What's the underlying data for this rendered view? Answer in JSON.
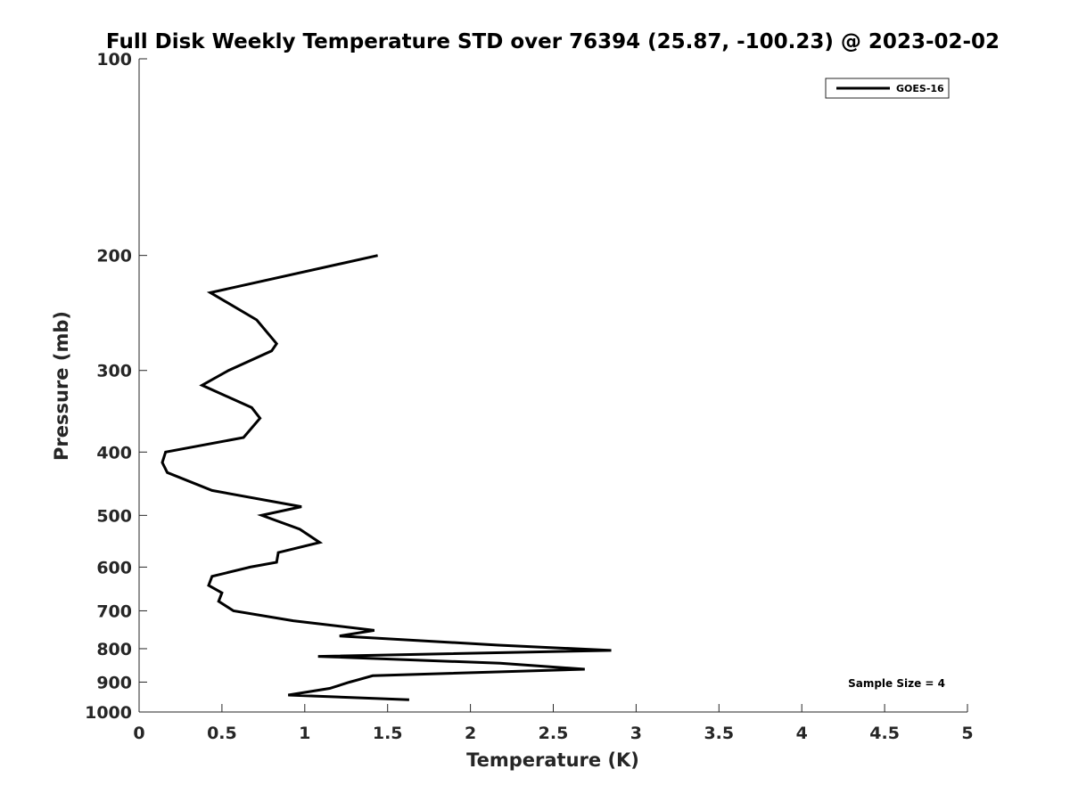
{
  "chart_data": {
    "type": "line",
    "title": "Full Disk Weekly Temperature STD over 76394 (25.87, -100.23) @ 2023-02-02",
    "xlabel": "Temperature (K)",
    "ylabel": "Pressure (mb)",
    "xlim": [
      0,
      5
    ],
    "ylim": [
      100,
      1000
    ],
    "y_scale": "log",
    "y_direction": "reversed",
    "grid": false,
    "legend_position": "top-right",
    "x_ticks": [
      0,
      0.5,
      1,
      1.5,
      2,
      2.5,
      3,
      3.5,
      4,
      4.5,
      5
    ],
    "x_tick_labels": [
      "0",
      "0.5",
      "1",
      "1.5",
      "2",
      "2.5",
      "3",
      "3.5",
      "4",
      "4.5",
      "5"
    ],
    "y_ticks": [
      100,
      200,
      300,
      400,
      500,
      600,
      700,
      800,
      900,
      1000
    ],
    "y_tick_labels": [
      "100",
      "200",
      "300",
      "400",
      "500",
      "600",
      "700",
      "800",
      "900",
      "1000"
    ],
    "series": [
      {
        "name": "GOES-16",
        "color": "#000000",
        "points": [
          {
            "x": 1.44,
            "y": 200
          },
          {
            "x": 0.43,
            "y": 228
          },
          {
            "x": 0.71,
            "y": 251
          },
          {
            "x": 0.83,
            "y": 273
          },
          {
            "x": 0.8,
            "y": 280
          },
          {
            "x": 0.54,
            "y": 300
          },
          {
            "x": 0.38,
            "y": 316
          },
          {
            "x": 0.68,
            "y": 342
          },
          {
            "x": 0.73,
            "y": 355
          },
          {
            "x": 0.63,
            "y": 380
          },
          {
            "x": 0.16,
            "y": 400
          },
          {
            "x": 0.14,
            "y": 415
          },
          {
            "x": 0.17,
            "y": 430
          },
          {
            "x": 0.44,
            "y": 458
          },
          {
            "x": 0.98,
            "y": 485
          },
          {
            "x": 0.74,
            "y": 500
          },
          {
            "x": 0.97,
            "y": 525
          },
          {
            "x": 1.09,
            "y": 550
          },
          {
            "x": 0.84,
            "y": 570
          },
          {
            "x": 0.83,
            "y": 590
          },
          {
            "x": 0.67,
            "y": 600
          },
          {
            "x": 0.44,
            "y": 620
          },
          {
            "x": 0.42,
            "y": 640
          },
          {
            "x": 0.5,
            "y": 657
          },
          {
            "x": 0.48,
            "y": 677
          },
          {
            "x": 0.57,
            "y": 700
          },
          {
            "x": 0.93,
            "y": 725
          },
          {
            "x": 1.42,
            "y": 750
          },
          {
            "x": 1.21,
            "y": 765
          },
          {
            "x": 2.17,
            "y": 790
          },
          {
            "x": 2.85,
            "y": 805
          },
          {
            "x": 1.08,
            "y": 822
          },
          {
            "x": 2.18,
            "y": 842
          },
          {
            "x": 2.69,
            "y": 860
          },
          {
            "x": 1.41,
            "y": 880
          },
          {
            "x": 1.27,
            "y": 900
          },
          {
            "x": 1.15,
            "y": 920
          },
          {
            "x": 0.9,
            "y": 942
          },
          {
            "x": 1.63,
            "y": 958
          }
        ]
      }
    ],
    "annotations": [
      "Sample Size = 4"
    ]
  }
}
